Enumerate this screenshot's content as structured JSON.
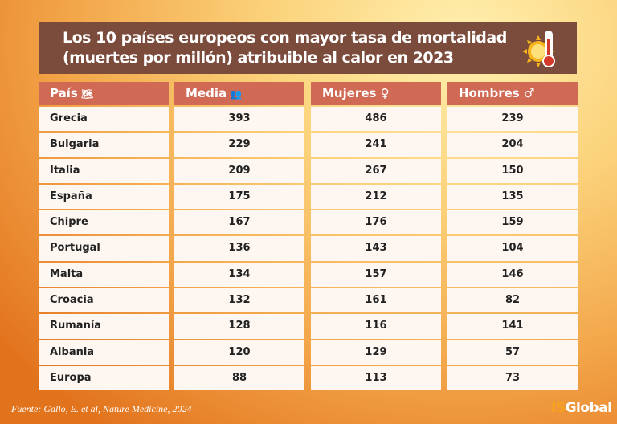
{
  "title": {
    "line1": "Los 10 países europeos con mayor tasa de mortalidad",
    "line2": "(muertes por millón) atribuible al calor en 2023"
  },
  "source": "Fuente: Gallo, E. et al, Nature Medicine, 2024",
  "logo": {
    "part1": "IS",
    "part2": "Global"
  },
  "colors": {
    "title_bg": "#7b4b3c",
    "header_bg": "#d06a55",
    "cell_bg": "#fdf6f1",
    "accent": "#f7a21c"
  },
  "chart_data": {
    "type": "table",
    "columns": [
      "País",
      "Media",
      "Mujeres ♀",
      "Hombres ♂"
    ],
    "column_icons": [
      "europe-map-icon",
      "people-icon",
      "female-icon",
      "male-icon"
    ],
    "rows": [
      [
        "Grecia",
        393,
        486,
        239
      ],
      [
        "Bulgaria",
        229,
        241,
        204
      ],
      [
        "Italia",
        209,
        267,
        150
      ],
      [
        "España",
        175,
        212,
        135
      ],
      [
        "Chipre",
        167,
        176,
        159
      ],
      [
        "Portugal",
        136,
        143,
        104
      ],
      [
        "Malta",
        134,
        157,
        146
      ],
      [
        "Croacia",
        132,
        161,
        82
      ],
      [
        "Rumanía",
        128,
        116,
        141
      ],
      [
        "Albania",
        120,
        129,
        57
      ],
      [
        "Europa",
        88,
        113,
        73
      ]
    ]
  }
}
